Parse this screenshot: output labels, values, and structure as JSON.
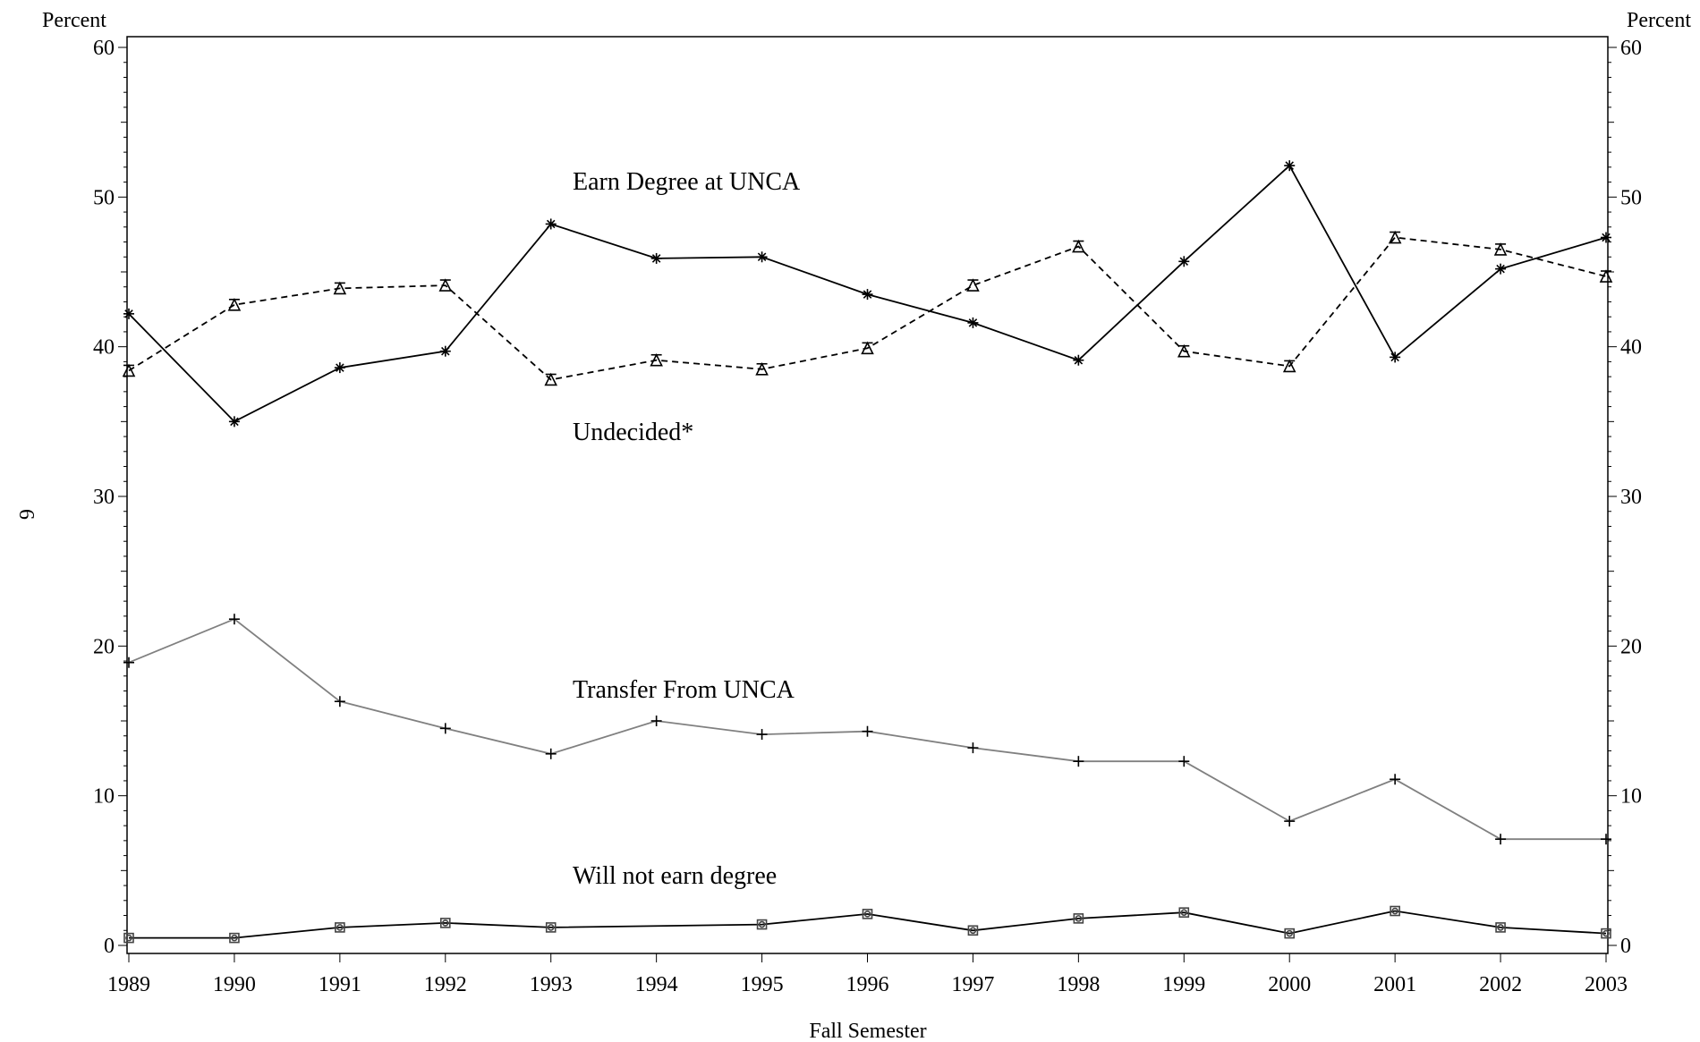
{
  "chart_data": {
    "type": "line",
    "xlabel": "Fall Semester",
    "ylabel_left": "Percent",
    "ylabel_right": "Percent",
    "side_label": "6",
    "ylim": [
      0,
      60
    ],
    "yticks": [
      0,
      10,
      20,
      30,
      40,
      50,
      60
    ],
    "x": [
      "1989",
      "1990",
      "1991",
      "1992",
      "1993",
      "1994",
      "1995",
      "1996",
      "1997",
      "1998",
      "1999",
      "2000",
      "2001",
      "2002",
      "2003"
    ],
    "grid": false,
    "series": [
      {
        "name": "Earn Degree at UNCA",
        "color": "#000000",
        "dashed": false,
        "marker": "asterisk",
        "values": [
          42.2,
          35.0,
          38.6,
          39.7,
          48.2,
          45.9,
          46.0,
          43.5,
          41.6,
          39.1,
          45.7,
          52.1,
          39.3,
          45.2,
          47.3
        ]
      },
      {
        "name": "Undecided*",
        "color": "#000000",
        "dashed": true,
        "marker": "triangle",
        "values": [
          38.4,
          42.8,
          43.9,
          44.1,
          37.8,
          39.1,
          38.5,
          39.9,
          44.1,
          46.7,
          39.7,
          38.7,
          47.3,
          46.5,
          44.7
        ]
      },
      {
        "name": "Transfer From UNCA",
        "color": "#808080",
        "dashed": false,
        "marker": "plus",
        "values": [
          18.9,
          21.8,
          16.3,
          14.5,
          12.8,
          15.0,
          14.1,
          14.3,
          13.2,
          12.3,
          12.3,
          8.3,
          11.1,
          7.1,
          7.1
        ]
      },
      {
        "name": "Will not earn degree",
        "color": "#000000",
        "dashed": false,
        "marker": "square",
        "values": [
          0.5,
          0.5,
          1.2,
          1.5,
          1.2,
          null,
          1.4,
          2.1,
          1.0,
          1.8,
          2.2,
          0.8,
          2.3,
          1.2,
          0.8
        ]
      }
    ]
  }
}
